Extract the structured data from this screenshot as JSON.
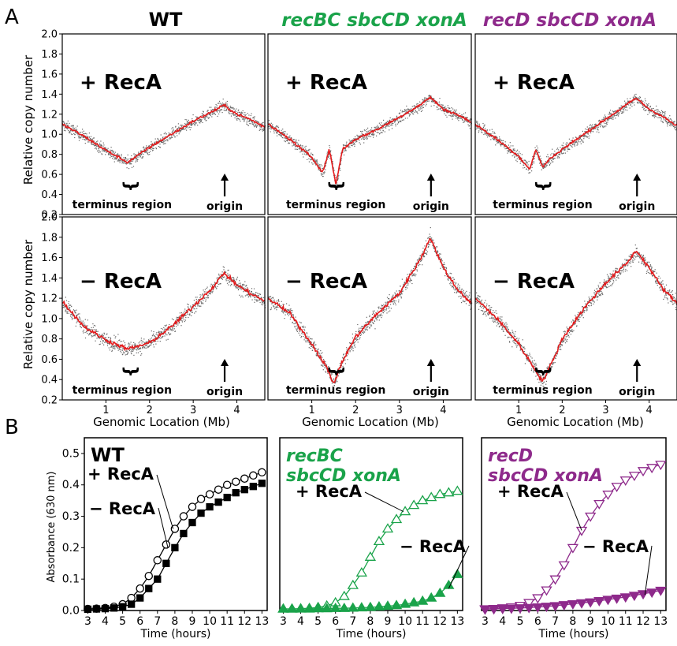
{
  "panels": {
    "a_letter": "A",
    "b_letter": "B"
  },
  "colors": {
    "wt": "#000000",
    "green": "#1aa34a",
    "purple": "#8e2a8b",
    "trace": "#e41a1c",
    "scatter": "#666666"
  },
  "panel_a": {
    "columns": [
      {
        "title": "WT",
        "italic": false,
        "color": "#000000"
      },
      {
        "title": "recBC sbcCD xonA",
        "italic": true,
        "color": "#1aa34a"
      },
      {
        "title": "recD sbcCD xonA",
        "italic": true,
        "color": "#8e2a8b"
      }
    ],
    "row_labels": [
      "+ RecA",
      "− RecA"
    ],
    "ylabel": "Relative copy number",
    "xlabel": "Genomic Location (Mb)",
    "terminus_label": "terminus region",
    "origin_label": "origin",
    "brace_glyph": "}"
  },
  "panel_b": {
    "ylabel": "Absorbance (630 nm)",
    "xlabel": "Time (hours)",
    "titles": [
      {
        "lines": [
          "WT"
        ],
        "italic": false,
        "color": "#000000"
      },
      {
        "lines": [
          "recBC",
          "sbcCD xonA"
        ],
        "italic": true,
        "color": "#1aa34a"
      },
      {
        "lines": [
          "recD",
          "sbcCD xonA"
        ],
        "italic": true,
        "color": "#8e2a8b"
      }
    ],
    "plus_label": "+ RecA",
    "minus_label": "− RecA"
  },
  "chart_data": [
    {
      "type": "scatter",
      "panel": "A",
      "title": "WT",
      "xlabel": "Genomic Location (Mb)",
      "ylabel": "Relative copy number",
      "xlim": [
        0,
        4.64
      ],
      "ylim": [
        0.2,
        2.0
      ],
      "xticks": [
        1,
        2,
        3,
        4
      ],
      "yticks": [
        0.2,
        0.4,
        0.6,
        0.8,
        1.0,
        1.2,
        1.4,
        1.6,
        1.8,
        2.0
      ],
      "series": [
        {
          "name": "+ RecA",
          "x": [
            0,
            0.5,
            1.0,
            1.5,
            2.0,
            2.5,
            3.0,
            3.5,
            3.7,
            4.0,
            4.3,
            4.64
          ],
          "y": [
            1.1,
            0.98,
            0.84,
            0.72,
            0.87,
            1.0,
            1.13,
            1.24,
            1.29,
            1.2,
            1.15,
            1.07
          ]
        },
        {
          "name": "− RecA",
          "x": [
            0,
            0.5,
            1.0,
            1.5,
            2.0,
            2.5,
            3.0,
            3.5,
            3.7,
            4.0,
            4.3,
            4.64
          ],
          "y": [
            1.17,
            0.92,
            0.79,
            0.7,
            0.76,
            0.92,
            1.12,
            1.33,
            1.45,
            1.33,
            1.25,
            1.17
          ]
        }
      ]
    },
    {
      "type": "scatter",
      "panel": "A",
      "title": "recBC sbcCD xonA",
      "xlabel": "Genomic Location (Mb)",
      "ylabel": "Relative copy number",
      "xlim": [
        0,
        4.64
      ],
      "ylim": [
        0.2,
        2.0
      ],
      "xticks": [
        1,
        2,
        3,
        4
      ],
      "yticks": [
        0.2,
        0.4,
        0.6,
        0.8,
        1.0,
        1.2,
        1.4,
        1.6,
        1.8,
        2.0
      ],
      "series": [
        {
          "name": "+ RecA",
          "x": [
            0,
            0.5,
            1.0,
            1.25,
            1.4,
            1.55,
            1.7,
            2.0,
            2.5,
            3.0,
            3.5,
            3.7,
            4.0,
            4.3,
            4.64
          ],
          "y": [
            1.1,
            0.95,
            0.77,
            0.62,
            0.85,
            0.5,
            0.85,
            0.95,
            1.05,
            1.17,
            1.3,
            1.37,
            1.25,
            1.2,
            1.12
          ]
        },
        {
          "name": "− RecA",
          "x": [
            0,
            0.5,
            1.0,
            1.3,
            1.5,
            1.7,
            2.0,
            2.5,
            3.0,
            3.5,
            3.7,
            4.0,
            4.3,
            4.64
          ],
          "y": [
            1.2,
            1.05,
            0.75,
            0.55,
            0.36,
            0.58,
            0.82,
            1.05,
            1.25,
            1.6,
            1.8,
            1.5,
            1.3,
            1.15
          ]
        }
      ]
    },
    {
      "type": "scatter",
      "panel": "A",
      "title": "recD sbcCD xonA",
      "xlabel": "Genomic Location (Mb)",
      "ylabel": "Relative copy number",
      "xlim": [
        0,
        4.64
      ],
      "ylim": [
        0.2,
        2.0
      ],
      "xticks": [
        1,
        2,
        3,
        4
      ],
      "yticks": [
        0.2,
        0.4,
        0.6,
        0.8,
        1.0,
        1.2,
        1.4,
        1.6,
        1.8,
        2.0
      ],
      "series": [
        {
          "name": "+ RecA",
          "x": [
            0,
            0.5,
            1.0,
            1.25,
            1.4,
            1.55,
            1.7,
            2.0,
            2.5,
            3.0,
            3.5,
            3.7,
            4.0,
            4.3,
            4.64
          ],
          "y": [
            1.1,
            0.95,
            0.78,
            0.65,
            0.85,
            0.67,
            0.75,
            0.85,
            1.0,
            1.15,
            1.3,
            1.36,
            1.25,
            1.18,
            1.08
          ]
        },
        {
          "name": "− RecA",
          "x": [
            0,
            0.5,
            1.0,
            1.3,
            1.55,
            1.8,
            2.0,
            2.5,
            3.0,
            3.5,
            3.7,
            4.0,
            4.3,
            4.64
          ],
          "y": [
            1.2,
            1.0,
            0.75,
            0.55,
            0.38,
            0.6,
            0.8,
            1.1,
            1.35,
            1.55,
            1.67,
            1.5,
            1.3,
            1.15
          ]
        }
      ]
    },
    {
      "type": "line",
      "panel": "B",
      "title": "WT",
      "xlabel": "Time (hours)",
      "ylabel": "Absorbance (630 nm)",
      "xlim": [
        2.8,
        13.3
      ],
      "ylim": [
        0.0,
        0.55
      ],
      "xticks": [
        3,
        4,
        5,
        6,
        7,
        8,
        9,
        10,
        11,
        12,
        13
      ],
      "yticks": [
        0.0,
        0.1,
        0.2,
        0.3,
        0.4,
        0.5
      ],
      "yticklabels": [
        "0.0",
        "0.1",
        "0.2",
        "0.3",
        "0.4",
        "0.5"
      ],
      "series": [
        {
          "name": "+ RecA",
          "marker": "open-circle",
          "x": [
            3,
            3.5,
            4,
            4.5,
            5,
            5.5,
            6,
            6.5,
            7,
            7.5,
            8,
            8.5,
            9,
            9.5,
            10,
            10.5,
            11,
            11.5,
            12,
            12.5,
            13
          ],
          "y": [
            0.005,
            0.006,
            0.008,
            0.012,
            0.02,
            0.04,
            0.07,
            0.11,
            0.16,
            0.21,
            0.26,
            0.3,
            0.33,
            0.355,
            0.37,
            0.385,
            0.4,
            0.41,
            0.42,
            0.43,
            0.44
          ]
        },
        {
          "name": "− RecA",
          "marker": "filled-square",
          "x": [
            3,
            3.5,
            4,
            4.5,
            5,
            5.5,
            6,
            6.5,
            7,
            7.5,
            8,
            8.5,
            9,
            9.5,
            10,
            10.5,
            11,
            11.5,
            12,
            12.5,
            13
          ],
          "y": [
            0.004,
            0.005,
            0.006,
            0.008,
            0.012,
            0.02,
            0.04,
            0.07,
            0.1,
            0.15,
            0.2,
            0.245,
            0.28,
            0.31,
            0.33,
            0.345,
            0.36,
            0.375,
            0.385,
            0.395,
            0.405
          ]
        }
      ]
    },
    {
      "type": "line",
      "panel": "B",
      "title": "recBC sbcCD xonA",
      "xlabel": "Time (hours)",
      "xlim": [
        2.8,
        13.3
      ],
      "ylim": [
        0.0,
        0.55
      ],
      "xticks": [
        3,
        4,
        5,
        6,
        7,
        8,
        9,
        10,
        11,
        12,
        13
      ],
      "series": [
        {
          "name": "+ RecA",
          "marker": "open-triangle-up",
          "x": [
            3,
            3.5,
            4,
            4.5,
            5,
            5.5,
            6,
            6.5,
            7,
            7.5,
            8,
            8.5,
            9,
            9.5,
            10,
            10.5,
            11,
            11.5,
            12,
            12.5,
            13
          ],
          "y": [
            0.005,
            0.005,
            0.006,
            0.007,
            0.01,
            0.015,
            0.025,
            0.045,
            0.08,
            0.12,
            0.17,
            0.22,
            0.26,
            0.29,
            0.315,
            0.335,
            0.35,
            0.36,
            0.37,
            0.375,
            0.38
          ]
        },
        {
          "name": "− RecA",
          "marker": "filled-triangle-up",
          "x": [
            3,
            3.5,
            4,
            4.5,
            5,
            5.5,
            6,
            6.5,
            7,
            7.5,
            8,
            8.5,
            9,
            9.5,
            10,
            10.5,
            11,
            11.5,
            12,
            12.5,
            13
          ],
          "y": [
            0.005,
            0.005,
            0.005,
            0.005,
            0.006,
            0.006,
            0.007,
            0.007,
            0.008,
            0.009,
            0.01,
            0.012,
            0.014,
            0.016,
            0.02,
            0.025,
            0.03,
            0.04,
            0.055,
            0.08,
            0.115
          ]
        }
      ]
    },
    {
      "type": "line",
      "panel": "B",
      "title": "recD sbcCD xonA",
      "xlabel": "Time (hours)",
      "xlim": [
        2.8,
        13.3
      ],
      "ylim": [
        0.0,
        0.55
      ],
      "xticks": [
        3,
        4,
        5,
        6,
        7,
        8,
        9,
        10,
        11,
        12,
        13
      ],
      "series": [
        {
          "name": "+ RecA",
          "marker": "open-triangle-down",
          "x": [
            3,
            3.5,
            4,
            4.5,
            5,
            5.5,
            6,
            6.5,
            7,
            7.5,
            8,
            8.5,
            9,
            9.5,
            10,
            10.5,
            11,
            11.5,
            12,
            12.5,
            13
          ],
          "y": [
            0.005,
            0.006,
            0.008,
            0.011,
            0.016,
            0.025,
            0.04,
            0.065,
            0.1,
            0.145,
            0.2,
            0.255,
            0.3,
            0.34,
            0.37,
            0.395,
            0.415,
            0.43,
            0.445,
            0.455,
            0.465
          ]
        },
        {
          "name": "− RecA",
          "marker": "filled-triangle-down",
          "x": [
            3,
            3.5,
            4,
            4.5,
            5,
            5.5,
            6,
            6.5,
            7,
            7.5,
            8,
            8.5,
            9,
            9.5,
            10,
            10.5,
            11,
            11.5,
            12,
            12.5,
            13
          ],
          "y": [
            0.004,
            0.005,
            0.006,
            0.007,
            0.008,
            0.009,
            0.011,
            0.013,
            0.015,
            0.018,
            0.021,
            0.024,
            0.027,
            0.031,
            0.035,
            0.039,
            0.043,
            0.048,
            0.053,
            0.058,
            0.064
          ]
        }
      ]
    }
  ]
}
